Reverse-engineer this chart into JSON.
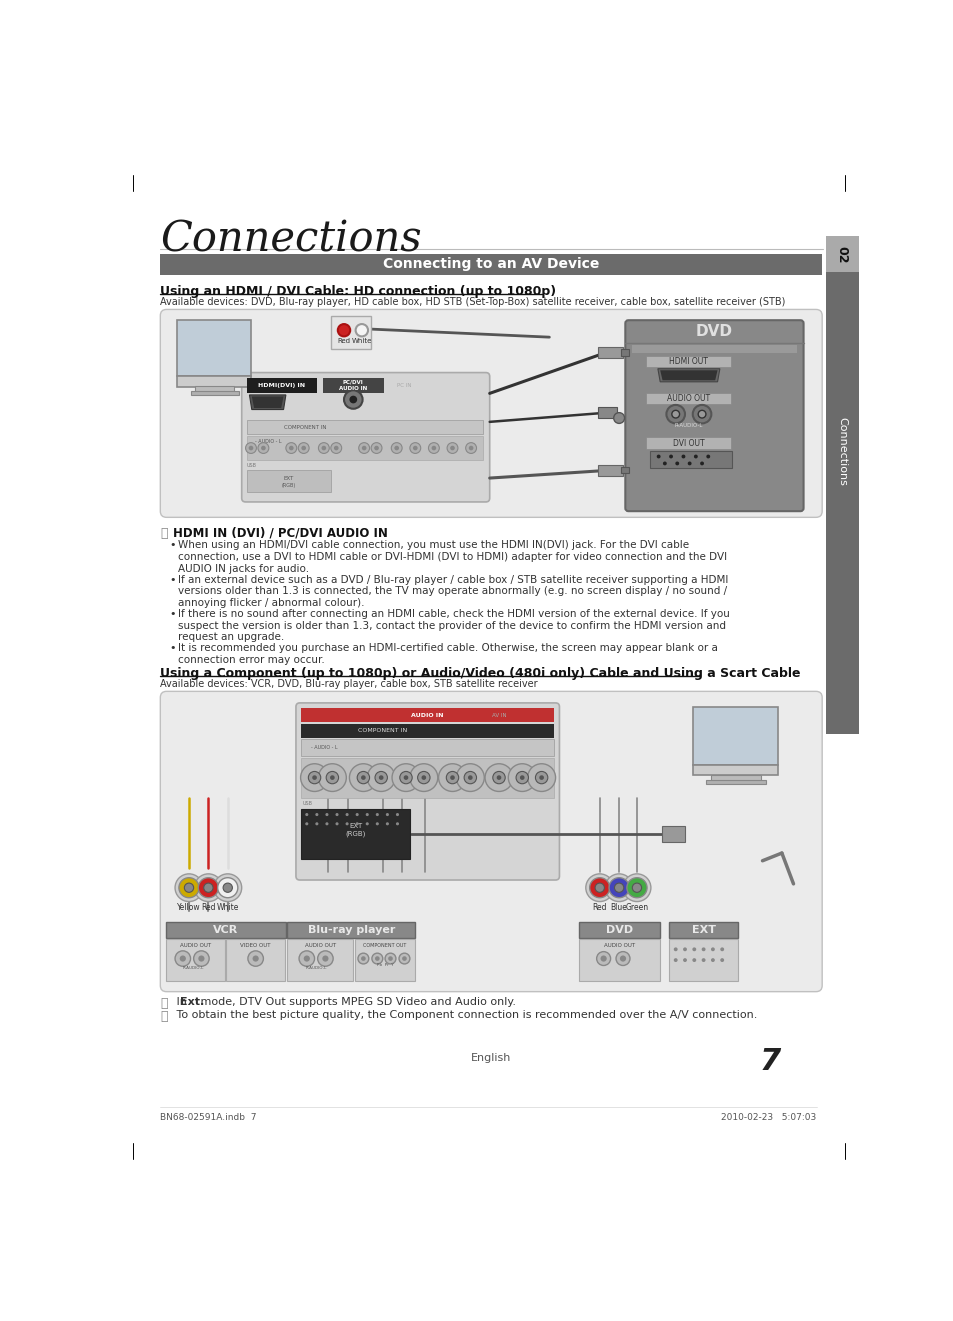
{
  "bg_color": "#ffffff",
  "title": "Connections",
  "section_bar_color": "#6b6b6b",
  "section_bar_text": "Connecting to an AV Device",
  "hdmi_title": "Using an HDMI / DVI Cable: HD connection (up to 1080p)",
  "hdmi_avail": "Available devices: DVD, Blu-ray player, HD cable box, HD STB (Set-Top-Box) satellite receiver, cable box, satellite receiver (STB)",
  "hdmi_note": "HDMI IN (DVI) / PC/DVI AUDIO IN",
  "hdmi_b1": "When using an HDMI/DVI cable connection, you must use the HDMI IN(DVI) jack. For the DVI cable\nconnection, use a DVI to HDMI cable or DVI-HDMI (DVI to HDMI) adapter for video connection and the DVI\nAUDIO IN jacks for audio.",
  "hdmi_b2": "If an external device such as a DVD / Blu-ray player / cable box / STB satellite receiver supporting a HDMI\nversions older than 1.3 is connected, the TV may operate abnormally (e.g. no screen display / no sound /\nannoying flicker / abnormal colour).",
  "hdmi_b3": "If there is no sound after connecting an HDMI cable, check the HDMI version of the external device. If you\nsuspect the version is older than 1.3, contact the provider of the device to confirm the HDMI version and\nrequest an upgrade.",
  "hdmi_b4": "It is recommended you purchase an HDMI-certified cable. Otherwise, the screen may appear blank or a\nconnection error may occur.",
  "comp_title": "Using a Component (up to 1080p) or Audio/Video (480i only) Cable and Using a Scart Cable",
  "comp_avail": "Available devices: VCR, DVD, Blu-ray player, cable box, STB satellite receiver",
  "fn1": " In ",
  "fn1b": "Ext.",
  "fn1c": " mode, DTV Out supports MPEG SD Video and Audio only.",
  "fn2": " To obtain the best picture quality, the Component connection is recommended over the A/V connection.",
  "footer_l": "BN68-02591A.indb  7",
  "footer_r": "2010-02-23   5:07:03",
  "page_num": "7",
  "page_lang": "English",
  "sidebar_num": "02",
  "sidebar_label": "Connections"
}
